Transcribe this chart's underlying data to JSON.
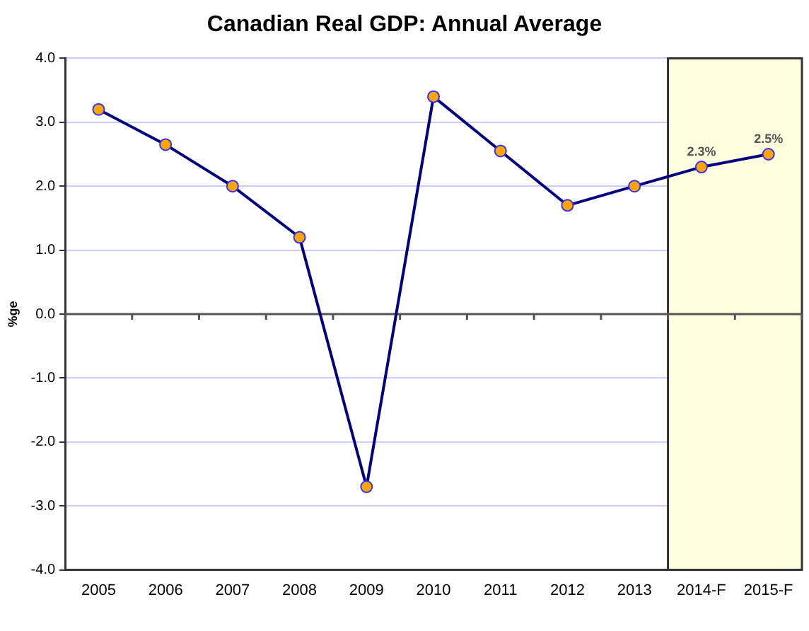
{
  "chart_data": {
    "type": "line",
    "title": "Canadian Real GDP: Annual Average",
    "ylabel": "%ge",
    "categories": [
      "2005",
      "2006",
      "2007",
      "2008",
      "2009",
      "2010",
      "2011",
      "2012",
      "2013",
      "2014-F",
      "2015-F"
    ],
    "series": [
      {
        "color": "#000080",
        "values": [
          3.2,
          2.65,
          2.0,
          1.2,
          -2.7,
          3.4,
          2.55,
          1.7,
          2.0,
          2.3,
          2.5
        ],
        "value_labels": [
          null,
          null,
          null,
          null,
          null,
          null,
          null,
          null,
          null,
          "2.3%",
          "2.5%"
        ]
      }
    ],
    "ylim": [
      -4,
      4
    ],
    "yticks": [
      {
        "value": -4,
        "label": "-4.0"
      },
      {
        "value": -3,
        "label": "-3.0"
      },
      {
        "value": -2,
        "label": "-2.0"
      },
      {
        "value": -1,
        "label": "-1.0"
      },
      {
        "value": 0,
        "label": "0.0"
      },
      {
        "value": 1,
        "label": "1.0"
      },
      {
        "value": 2,
        "label": "2.0"
      },
      {
        "value": 3,
        "label": "3.0"
      },
      {
        "value": 4,
        "label": "4.0"
      }
    ],
    "grid": "y",
    "legend": false,
    "marker": "circle",
    "line_style": "solid",
    "bands": [
      {
        "axis": "x",
        "from": "2014-F",
        "to": "2015-F",
        "color": "#ffffe0"
      }
    ]
  }
}
